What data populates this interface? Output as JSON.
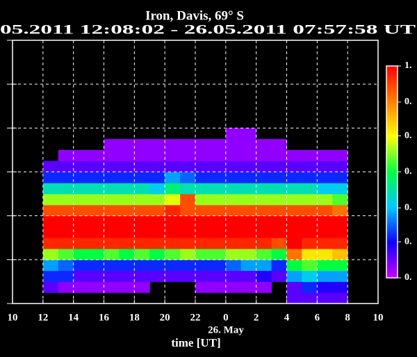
{
  "chart_data": {
    "type": "heatmap",
    "title": "Iron, Davis, 69° S",
    "subtitle": "05.2011 12:08:02 - 26.05.2011 07:57:58 UT",
    "xlabel": "time [UT]",
    "annotation": "26. May",
    "xbins": [
      12,
      13,
      14,
      15,
      16,
      17,
      18,
      19,
      20,
      21,
      22,
      23,
      24,
      25,
      26,
      27,
      28,
      29,
      30,
      31,
      32
    ],
    "ybins": [
      0,
      0.25,
      0.5,
      0.75,
      1,
      1.25,
      1.5,
      1.75,
      2,
      2.25,
      2.5,
      2.75,
      3,
      3.25,
      3.5,
      3.75,
      4
    ],
    "z": [
      [
        null,
        null,
        null,
        null,
        null,
        null,
        null,
        null,
        null,
        null,
        null,
        null,
        null,
        null,
        null,
        null,
        0.1,
        0.1,
        0.1,
        0.1
      ],
      [
        0.1,
        0.05,
        0.05,
        0.05,
        0.05,
        0.05,
        0.05,
        null,
        null,
        null,
        0.05,
        0.05,
        0.05,
        0.05,
        0.05,
        null,
        0.1,
        0.2,
        0.15,
        0.15
      ],
      [
        0.2,
        0.2,
        0.1,
        0.1,
        0.1,
        0.1,
        0.1,
        0.1,
        0.1,
        0.1,
        0.1,
        0.1,
        0.1,
        0.1,
        0.15,
        0.1,
        0.3,
        0.35,
        0.3,
        0.3
      ],
      [
        0.3,
        0.25,
        0.2,
        0.2,
        0.2,
        0.2,
        0.2,
        0.2,
        0.2,
        0.2,
        0.2,
        0.2,
        0.25,
        0.3,
        0.3,
        0.2,
        0.5,
        0.55,
        0.5,
        0.5
      ],
      [
        0.6,
        0.55,
        0.5,
        0.5,
        0.55,
        0.5,
        0.55,
        0.5,
        0.55,
        0.6,
        0.55,
        0.55,
        0.6,
        0.6,
        0.55,
        0.5,
        0.85,
        0.7,
        0.7,
        0.75
      ],
      [
        0.95,
        0.95,
        0.95,
        0.95,
        0.95,
        0.95,
        0.95,
        0.95,
        0.95,
        0.95,
        0.95,
        0.95,
        0.95,
        0.95,
        0.95,
        0.9,
        1,
        0.95,
        0.95,
        0.95
      ],
      [
        1,
        1,
        1,
        1,
        1,
        1,
        1,
        1,
        1,
        1,
        1,
        1,
        1,
        1,
        1,
        1,
        1,
        1,
        1,
        1
      ],
      [
        1,
        1,
        1,
        1,
        1,
        1,
        1,
        1,
        1,
        1,
        1,
        1,
        1,
        1,
        1,
        1,
        1,
        1,
        1,
        1
      ],
      [
        0.9,
        0.9,
        0.9,
        0.9,
        0.9,
        0.9,
        0.9,
        0.9,
        0.95,
        0.9,
        0.9,
        0.9,
        0.9,
        0.9,
        0.9,
        0.9,
        0.9,
        0.9,
        0.9,
        0.85
      ],
      [
        0.6,
        0.6,
        0.6,
        0.6,
        0.6,
        0.6,
        0.6,
        0.6,
        0.65,
        0.9,
        0.6,
        0.6,
        0.6,
        0.6,
        0.6,
        0.6,
        0.6,
        0.6,
        0.6,
        0.55
      ],
      [
        0.4,
        0.4,
        0.4,
        0.4,
        0.4,
        0.4,
        0.4,
        0.35,
        0.45,
        0.4,
        0.4,
        0.4,
        0.4,
        0.4,
        0.4,
        0.4,
        0.4,
        0.4,
        0.35,
        0.35
      ],
      [
        0.2,
        0.2,
        0.2,
        0.2,
        0.2,
        0.2,
        0.2,
        0.2,
        0.3,
        0.25,
        0.2,
        0.2,
        0.2,
        0.2,
        0.2,
        0.2,
        0.2,
        0.2,
        0.2,
        0.2
      ],
      [
        0.1,
        0.1,
        0.1,
        0.1,
        0.1,
        0.1,
        0.1,
        0.1,
        0.1,
        0.1,
        0.1,
        0.1,
        0.1,
        0.1,
        0.1,
        0.1,
        0.1,
        0.1,
        0.1,
        0.1
      ],
      [
        null,
        0.05,
        0.05,
        0.05,
        0.05,
        0.05,
        0.05,
        0.05,
        0.05,
        0.05,
        0.05,
        0.05,
        0.05,
        0.05,
        0.05,
        0.05,
        0.05,
        0.05,
        0.05,
        0.05
      ],
      [
        null,
        null,
        null,
        null,
        0.05,
        0.05,
        0.05,
        0.05,
        0.05,
        0.05,
        0.05,
        0.05,
        0.05,
        0.05,
        0.05,
        0.05,
        null,
        null,
        null,
        null
      ],
      [
        null,
        null,
        null,
        null,
        null,
        null,
        null,
        null,
        null,
        null,
        null,
        null,
        0.05,
        0.05,
        null,
        null,
        null,
        null,
        null,
        null
      ]
    ],
    "xlim": [
      10,
      34
    ],
    "xticks": [
      10,
      12,
      14,
      16,
      18,
      20,
      22,
      {
        "value": 24,
        "label": "0"
      },
      {
        "value": 26,
        "label": "2"
      },
      {
        "value": 28,
        "label": "4"
      },
      {
        "value": 30,
        "label": "6"
      },
      {
        "value": 32,
        "label": "8"
      },
      {
        "value": 34,
        "label": "10"
      }
    ],
    "ylim": [
      0,
      6
    ],
    "yticks": [
      0,
      1,
      2,
      3,
      4,
      5,
      6
    ],
    "grid": true,
    "colormap": [
      "#c800ff",
      "#1000ff",
      "#00c8ff",
      "#00ff40",
      "#ffff00",
      "#ff8000",
      "#ff0000"
    ],
    "clim": [
      0,
      1
    ],
    "colorbar_ticks": [
      {
        "value": 1,
        "label": "1."
      },
      {
        "value": 0.83,
        "label": "0."
      },
      {
        "value": 0.67,
        "label": "0."
      },
      {
        "value": 0.5,
        "label": "0."
      },
      {
        "value": 0.33,
        "label": "0."
      },
      {
        "value": 0.17,
        "label": "0."
      },
      {
        "value": 0,
        "label": "0."
      }
    ]
  }
}
